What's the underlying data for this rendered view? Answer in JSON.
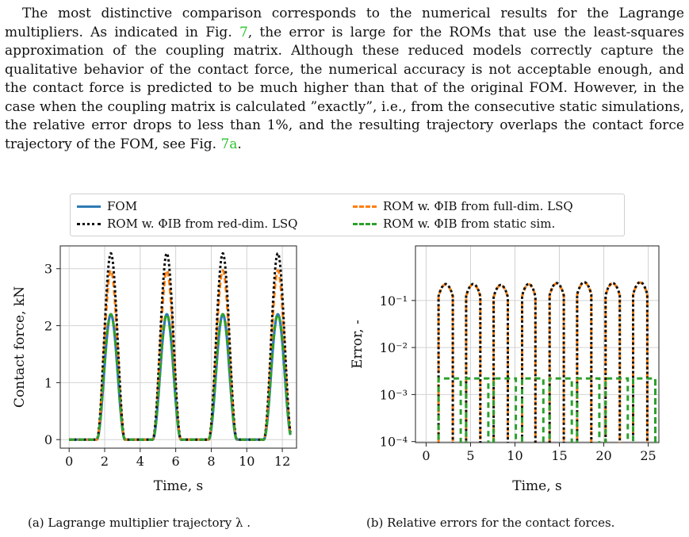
{
  "paragraph": {
    "before_ref1": "The most distinctive comparison corresponds to the numerical results for the Lagrange multipliers. As indicated in Fig.",
    "ref1": "7",
    "middle": ", the error is large for the ROMs that use the least-squares approximation of the coupling matrix. Although these reduced models correctly capture the qualitative behavior of the contact force, the numerical accuracy is not acceptable enough, and the contact force is predicted to be much higher than that of the original FOM. However, in the case when the coupling matrix is calculated ”exactly”, i.e., from the consecutive static simulations, the relative error drops to less than 1%, and the resulting trajectory overlaps the contact force trajectory of the FOM, see Fig.",
    "ref2": "7a",
    "end": "."
  },
  "legend": {
    "fom": "FOM",
    "rom_full": "ROM w. ΦIB from full-dim. LSQ",
    "rom_red": "ROM w. ΦIB from red-dim. LSQ",
    "rom_static": "ROM w. ΦIB from static sim."
  },
  "colors": {
    "fom": "#2e7bb5",
    "rom_full": "#ff7f0e",
    "rom_red": "#111111",
    "rom_static": "#2ca02c",
    "ref_link": "#2ec52e"
  },
  "captions": {
    "a": "(a) Lagrange multiplier trajectory λ .",
    "b": "(b) Relative errors for the contact forces."
  },
  "chart_data": [
    {
      "type": "line",
      "xlabel": "Time, s",
      "ylabel": "Contact force, kN",
      "xlim": [
        -0.5,
        12.8
      ],
      "ylim": [
        -0.15,
        3.4
      ],
      "xticks": [
        "0",
        "2",
        "4",
        "6",
        "8",
        "10",
        "12"
      ],
      "yticks": [
        "0",
        "1",
        "2",
        "3"
      ],
      "grid": true,
      "pulses": [
        {
          "start": 1.55,
          "peak": 2.35,
          "end": 3.15
        },
        {
          "start": 4.7,
          "peak": 5.5,
          "end": 6.3
        },
        {
          "start": 7.85,
          "peak": 8.65,
          "end": 9.45
        },
        {
          "start": 10.95,
          "peak": 11.75,
          "end": 12.55
        }
      ],
      "x_end": 12.45,
      "series": [
        {
          "name": "FOM",
          "peak_value": 2.2
        },
        {
          "name": "ROM w. ΦIB from full-dim. LSQ",
          "peak_value": 2.97
        },
        {
          "name": "ROM w. ΦIB from red-dim. LSQ",
          "peak_value": 3.27
        },
        {
          "name": "ROM w. ΦIB from static sim.",
          "peak_value": 2.2
        }
      ]
    },
    {
      "type": "line",
      "xlabel": "Time, s",
      "ylabel": "Error, -",
      "xlim": [
        -1.2,
        26.2
      ],
      "ylim": [
        9.5e-05,
        1.45
      ],
      "yscale": "log",
      "xticks": [
        "0",
        "5",
        "10",
        "15",
        "20",
        "25"
      ],
      "yticks": [
        "10⁻⁴",
        "10⁻³",
        "10⁻²",
        "10⁻¹"
      ],
      "grid": true,
      "error_bursts": [
        {
          "start": 1.4,
          "end": 3.0,
          "peak": 0.22
        },
        {
          "start": 4.5,
          "end": 6.1,
          "peak": 0.22
        },
        {
          "start": 7.6,
          "end": 9.2,
          "peak": 0.21
        },
        {
          "start": 10.8,
          "end": 12.3,
          "peak": 0.22
        },
        {
          "start": 13.9,
          "end": 15.5,
          "peak": 0.23
        },
        {
          "start": 17.0,
          "end": 18.6,
          "peak": 0.24
        },
        {
          "start": 20.2,
          "end": 21.8,
          "peak": 0.23
        },
        {
          "start": 23.3,
          "end": 24.9,
          "peak": 0.24
        }
      ],
      "static_error_level": 0.0022
    }
  ]
}
